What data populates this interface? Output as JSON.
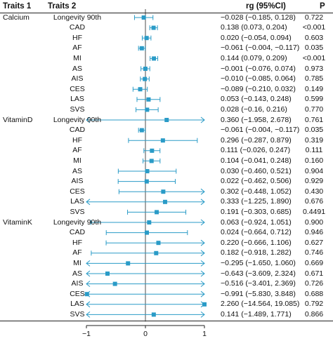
{
  "headers": {
    "traits1": "Traits 1",
    "traits2": "Traits 2",
    "rg": "rg (95%CI)",
    "p": "P"
  },
  "colors": {
    "marker": "#2a9bc7",
    "ci": "#2a9bc7",
    "axis": "#222222"
  },
  "chart_data": {
    "type": "forest",
    "xlim": [
      -1,
      1
    ],
    "xticks": [
      "−1",
      "0",
      "1"
    ],
    "reference_line": 0,
    "rows": [
      {
        "trait1": "Calcium",
        "trait2": "Longevity 90th",
        "rg": -0.028,
        "lo": -0.185,
        "hi": 0.128,
        "text": "−0.028 (−0.185, 0.128)",
        "p": "0.722"
      },
      {
        "trait1": "",
        "trait2": "CAD",
        "rg": 0.138,
        "lo": 0.073,
        "hi": 0.204,
        "text": "0.138 (0.073, 0.204)",
        "p": "<0.001"
      },
      {
        "trait1": "",
        "trait2": "HF",
        "rg": 0.02,
        "lo": -0.054,
        "hi": 0.094,
        "text": "0.020 (−0.054, 0.094)",
        "p": "0.603"
      },
      {
        "trait1": "",
        "trait2": "AF",
        "rg": -0.061,
        "lo": -0.117,
        "hi": -0.004,
        "text": "−0.061 (−0.004, −0.117)",
        "p": "0.035"
      },
      {
        "trait1": "",
        "trait2": "MI",
        "rg": 0.144,
        "lo": 0.079,
        "hi": 0.209,
        "text": "0.144 (0.079, 0.209)",
        "p": "<0.001"
      },
      {
        "trait1": "",
        "trait2": "AS",
        "rg": -0.001,
        "lo": -0.076,
        "hi": 0.074,
        "text": "−0.001 (−0.076, 0.074)",
        "p": "0.973"
      },
      {
        "trait1": "",
        "trait2": "AIS",
        "rg": -0.01,
        "lo": -0.085,
        "hi": 0.064,
        "text": "−0.010 (−0.085, 0.064)",
        "p": "0.785"
      },
      {
        "trait1": "",
        "trait2": "CES",
        "rg": -0.089,
        "lo": -0.21,
        "hi": 0.032,
        "text": "−0.089 (−0.210, 0.032)",
        "p": "0.149"
      },
      {
        "trait1": "",
        "trait2": "LAS",
        "rg": 0.053,
        "lo": -0.143,
        "hi": 0.248,
        "text": "0.053 (−0.143, 0.248)",
        "p": "0.599"
      },
      {
        "trait1": "",
        "trait2": "SVS",
        "rg": 0.028,
        "lo": -0.16,
        "hi": 0.216,
        "text": "0.028 (−0.16, 0.216)",
        "p": "0.770"
      },
      {
        "trait1": "VitaminD",
        "trait2": "Longevity 90th",
        "rg": 0.36,
        "lo": -1.958,
        "hi": 2.678,
        "text": "0.360 (−1.958, 2.678)",
        "p": "0.761"
      },
      {
        "trait1": "",
        "trait2": "CAD",
        "rg": -0.061,
        "lo": -0.117,
        "hi": -0.004,
        "text": "−0.061 (−0.004, −0.117)",
        "p": "0.035"
      },
      {
        "trait1": "",
        "trait2": "HF",
        "rg": 0.296,
        "lo": -0.287,
        "hi": 0.879,
        "text": "0.296 (−0.287, 0.879)",
        "p": "0.319"
      },
      {
        "trait1": "",
        "trait2": "AF",
        "rg": 0.111,
        "lo": -0.026,
        "hi": 0.247,
        "text": "0.111 (−0.026, 0.247)",
        "p": "0.111"
      },
      {
        "trait1": "",
        "trait2": "MI",
        "rg": 0.104,
        "lo": -0.041,
        "hi": 0.248,
        "text": "0.104 (−0.041, 0.248)",
        "p": "0.160"
      },
      {
        "trait1": "",
        "trait2": "AS",
        "rg": 0.03,
        "lo": -0.46,
        "hi": 0.521,
        "text": "0.030 (−0.460, 0.521)",
        "p": "0.904"
      },
      {
        "trait1": "",
        "trait2": "AIS",
        "rg": 0.022,
        "lo": -0.462,
        "hi": 0.506,
        "text": "0.022 (−0.462, 0.506)",
        "p": "0.929"
      },
      {
        "trait1": "",
        "trait2": "CES",
        "rg": 0.302,
        "lo": -0.448,
        "hi": 1.052,
        "text": "0.302 (−0.448, 1.052)",
        "p": "0.430"
      },
      {
        "trait1": "",
        "trait2": "LAS",
        "rg": 0.333,
        "lo": -1.225,
        "hi": 1.89,
        "text": "0.333 (−1.225, 1.890)",
        "p": "0.676"
      },
      {
        "trait1": "",
        "trait2": "SVS",
        "rg": 0.191,
        "lo": -0.303,
        "hi": 0.685,
        "text": "0.191 (−0.303, 0.685)",
        "p": "0.4491"
      },
      {
        "trait1": "VitaminK",
        "trait2": "Longevity 90th",
        "rg": 0.063,
        "lo": -0.924,
        "hi": 1.051,
        "text": "0.063 (−0.924, 1.051)",
        "p": "0.900"
      },
      {
        "trait1": "",
        "trait2": "CAD",
        "rg": 0.024,
        "lo": -0.664,
        "hi": 0.712,
        "text": "0.024 (−0.664, 0.712)",
        "p": "0.946"
      },
      {
        "trait1": "",
        "trait2": "HF",
        "rg": 0.22,
        "lo": -0.666,
        "hi": 1.106,
        "text": "0.220 (−0.666, 1.106)",
        "p": "0.627"
      },
      {
        "trait1": "",
        "trait2": "AF",
        "rg": 0.182,
        "lo": -0.918,
        "hi": 1.282,
        "text": "0.182 (−0.918, 1.282)",
        "p": "0.746"
      },
      {
        "trait1": "",
        "trait2": "MI",
        "rg": -0.295,
        "lo": -1.65,
        "hi": 1.06,
        "text": "−0.295 (−1.650, 1.060)",
        "p": "0.669"
      },
      {
        "trait1": "",
        "trait2": "AS",
        "rg": -0.643,
        "lo": -3.609,
        "hi": 2.324,
        "text": "−0.643 (−3.609, 2.324)",
        "p": "0.671"
      },
      {
        "trait1": "",
        "trait2": "AIS",
        "rg": -0.516,
        "lo": -3.401,
        "hi": 2.369,
        "text": "−0.516 (−3.401, 2.369)",
        "p": "0.726"
      },
      {
        "trait1": "",
        "trait2": "CES",
        "rg": -0.991,
        "lo": -5.83,
        "hi": 3.848,
        "text": "−0.991 (−5.830, 3.848)",
        "p": "0.688"
      },
      {
        "trait1": "",
        "trait2": "LAS",
        "rg": 2.26,
        "lo": -14.564,
        "hi": 19.085,
        "text": "2.260 (−14.564, 19.085)",
        "p": "0.792"
      },
      {
        "trait1": "",
        "trait2": "SVS",
        "rg": 0.141,
        "lo": -1.489,
        "hi": 1.771,
        "text": "0.141 (−1.489, 1.771)",
        "p": "0.866"
      }
    ]
  }
}
